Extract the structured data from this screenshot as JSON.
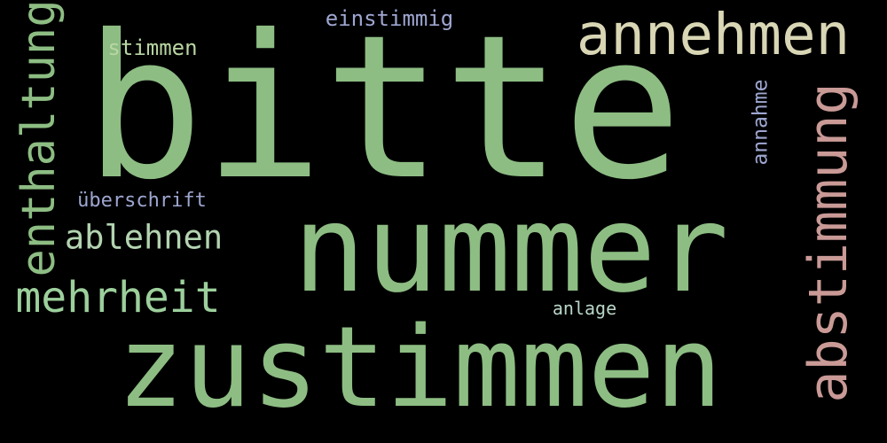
{
  "background": "#000000",
  "words": [
    {
      "id": "w-bitte",
      "text": "bitte",
      "orientation": "horizontal",
      "color": "#8dbd83"
    },
    {
      "id": "w-nummer",
      "text": "nummer",
      "orientation": "horizontal",
      "color": "#8dbd83"
    },
    {
      "id": "w-zustimmen",
      "text": "zustimmen",
      "orientation": "horizontal",
      "color": "#8dbd83"
    },
    {
      "id": "w-annehmen",
      "text": "annehmen",
      "orientation": "horizontal",
      "color": "#d8d6b4"
    },
    {
      "id": "w-abstimmung",
      "text": "abstimmung",
      "orientation": "vertical",
      "color": "#c99a96"
    },
    {
      "id": "w-enthaltung",
      "text": "enthaltung",
      "orientation": "vertical",
      "color": "#8dbd83"
    },
    {
      "id": "w-mehrheit",
      "text": "mehrheit",
      "orientation": "horizontal",
      "color": "#9ccf9c"
    },
    {
      "id": "w-ablehnen",
      "text": "ablehnen",
      "orientation": "horizontal",
      "color": "#b2d4b0"
    },
    {
      "id": "w-einstimmig",
      "text": "einstimmig",
      "orientation": "horizontal",
      "color": "#9ea6d0"
    },
    {
      "id": "w-stimmen",
      "text": "stimmen",
      "orientation": "horizontal",
      "color": "#b8d6a2"
    },
    {
      "id": "w-annahme",
      "text": "annahme",
      "orientation": "vertical",
      "color": "#9ea6d0"
    },
    {
      "id": "w-ueberschrift",
      "text": "überschrift",
      "orientation": "horizontal",
      "color": "#9ea6d0"
    },
    {
      "id": "w-anlage",
      "text": "anlage",
      "orientation": "horizontal",
      "color": "#b8d6c8"
    }
  ]
}
